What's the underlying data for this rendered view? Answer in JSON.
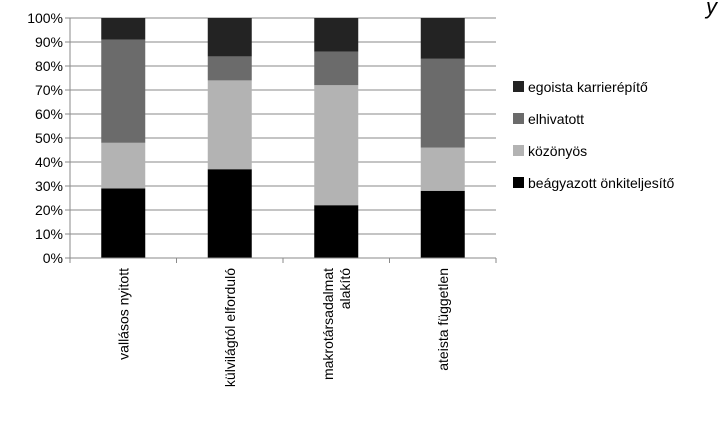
{
  "chart_data": {
    "type": "bar",
    "stacked": true,
    "percent": true,
    "categories": [
      [
        "vallásos nyitott"
      ],
      [
        "külvilágtól elforduló"
      ],
      [
        "makrotársadalmat",
        "alakító"
      ],
      [
        "ateista független"
      ]
    ],
    "series": [
      {
        "name": "beágyazott önkiteljesítő",
        "color": "#000000",
        "values": [
          29,
          37,
          22,
          28
        ]
      },
      {
        "name": "közönyös",
        "color": "#b3b3b3",
        "values": [
          19,
          37,
          50,
          18
        ]
      },
      {
        "name": "elhivatott",
        "color": "#6b6b6b",
        "values": [
          43,
          10,
          14,
          37
        ]
      },
      {
        "name": "egoista karrierépítő",
        "color": "#232323",
        "values": [
          9,
          16,
          14,
          17
        ]
      }
    ],
    "yticks": [
      "0%",
      "10%",
      "20%",
      "30%",
      "40%",
      "50%",
      "60%",
      "70%",
      "80%",
      "90%",
      "100%"
    ],
    "ylim": [
      0,
      100
    ],
    "grid": true,
    "legend_position": "right",
    "partial_text_top_right": "y"
  }
}
